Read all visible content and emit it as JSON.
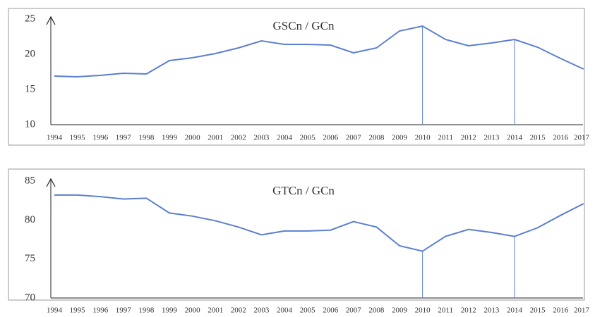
{
  "chart_data": [
    {
      "type": "line",
      "title": "GSCn / GCn",
      "categories": [
        "1994",
        "1995",
        "1996",
        "1997",
        "1998",
        "1999",
        "2000",
        "2001",
        "2002",
        "2003",
        "2004",
        "2005",
        "2006",
        "2007",
        "2008",
        "2009",
        "2010",
        "2011",
        "2012",
        "2013",
        "2014",
        "2015",
        "2016",
        "2017"
      ],
      "series": [
        {
          "color": "#5b7fd0",
          "values": [
            16.9,
            16.8,
            17.0,
            17.3,
            17.2,
            19.1,
            19.5,
            20.1,
            20.9,
            21.9,
            21.4,
            21.4,
            21.3,
            20.2,
            20.9,
            23.3,
            24.0,
            22.1,
            21.2,
            21.6,
            22.1,
            21.0,
            19.4,
            17.9
          ]
        }
      ],
      "ylim": [
        10,
        25
      ],
      "yticks": [
        10,
        15,
        20,
        25
      ],
      "drop_lines": [
        "2010",
        "2014"
      ]
    },
    {
      "type": "line",
      "title": "GTCn / GCn",
      "categories": [
        "1994",
        "1995",
        "1996",
        "1997",
        "1998",
        "1999",
        "2000",
        "2001",
        "2002",
        "2003",
        "2004",
        "2005",
        "2006",
        "2007",
        "2008",
        "2009",
        "2010",
        "2011",
        "2012",
        "2013",
        "2014",
        "2015",
        "2016",
        "2017"
      ],
      "series": [
        {
          "color": "#5b7fd0",
          "values": [
            83.2,
            83.2,
            83.0,
            82.7,
            82.8,
            80.9,
            80.5,
            79.9,
            79.1,
            78.1,
            78.6,
            78.6,
            78.7,
            79.8,
            79.1,
            76.7,
            76.0,
            77.9,
            78.8,
            78.4,
            77.9,
            79.0,
            80.6,
            82.1
          ]
        }
      ],
      "ylim": [
        70,
        85
      ],
      "yticks": [
        70,
        75,
        80,
        85
      ],
      "drop_lines": [
        "2010",
        "2014"
      ]
    }
  ]
}
